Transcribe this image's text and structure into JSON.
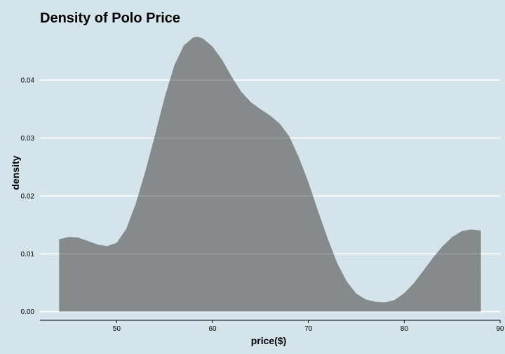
{
  "colors": {
    "background": "#d5e4eb",
    "gridline": "#ffffff",
    "fill": "#858b8c",
    "axis_line": "#000000"
  },
  "chart_data": {
    "type": "area",
    "title": "Density of Polo Price",
    "xlabel": "price($)",
    "ylabel": "density",
    "xlim": [
      42,
      90
    ],
    "ylim": [
      -0.0015,
      0.049
    ],
    "x_ticks": [
      {
        "value": 50,
        "label": "50"
      },
      {
        "value": 60,
        "label": "60"
      },
      {
        "value": 70,
        "label": "70"
      },
      {
        "value": 80,
        "label": "80"
      },
      {
        "value": 90,
        "label": "90"
      }
    ],
    "y_ticks": [
      {
        "value": 0.0,
        "label": "0.00"
      },
      {
        "value": 0.01,
        "label": "0.01"
      },
      {
        "value": 0.02,
        "label": "0.02"
      },
      {
        "value": 0.03,
        "label": "0.03"
      },
      {
        "value": 0.04,
        "label": "0.04"
      }
    ],
    "grid": {
      "horizontal": true,
      "vertical": false
    },
    "series": [
      {
        "x": [
          44.0,
          45.0,
          46.0,
          47.0,
          48.0,
          49.0,
          50.0,
          51.0,
          52.0,
          53.0,
          54.0,
          55.0,
          56.0,
          57.0,
          58.0,
          58.5,
          59.0,
          60.0,
          61.0,
          62.0,
          63.0,
          64.0,
          65.0,
          66.0,
          67.0,
          68.0,
          69.0,
          70.0,
          71.0,
          72.0,
          73.0,
          74.0,
          75.0,
          76.0,
          77.0,
          78.0,
          79.0,
          80.0,
          81.0,
          82.0,
          83.0,
          84.0,
          85.0,
          86.0,
          87.0,
          88.0
        ],
        "y": [
          0.0125,
          0.0129,
          0.0128,
          0.0122,
          0.0116,
          0.0113,
          0.0119,
          0.0143,
          0.0187,
          0.0243,
          0.0305,
          0.037,
          0.0425,
          0.046,
          0.0474,
          0.0475,
          0.0472,
          0.0458,
          0.0435,
          0.0406,
          0.038,
          0.0362,
          0.035,
          0.0339,
          0.0325,
          0.0303,
          0.0267,
          0.0224,
          0.0174,
          0.0127,
          0.0084,
          0.0052,
          0.0031,
          0.0021,
          0.0017,
          0.0016,
          0.002,
          0.0032,
          0.0049,
          0.0071,
          0.0093,
          0.0113,
          0.0129,
          0.0139,
          0.0142,
          0.014
        ]
      }
    ]
  }
}
